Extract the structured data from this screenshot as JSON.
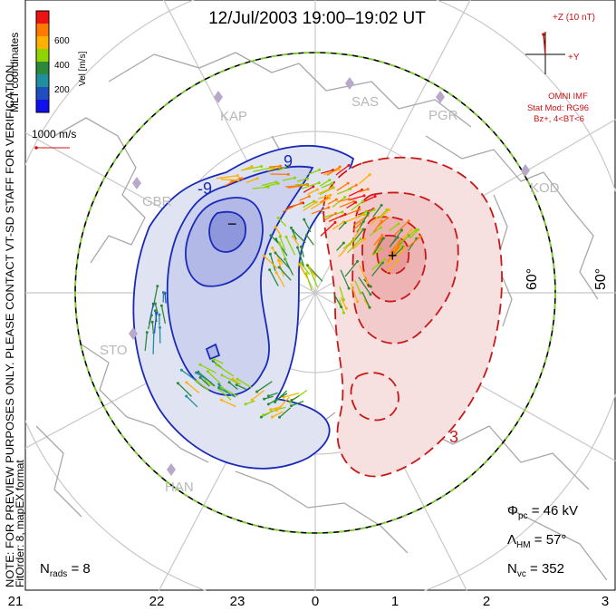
{
  "title": "12/Jul/2003 19:00–19:02 UT",
  "colorbar": {
    "label": "Vel [m/s]",
    "ticks": [
      "600",
      "400",
      "200"
    ],
    "colors": [
      "#ee1111",
      "#ff7a00",
      "#ffb000",
      "#8fd400",
      "#2a8a3a",
      "#1f8fa0",
      "#1f4fbf",
      "#1010ee"
    ]
  },
  "coord_label": "MLT coordinates",
  "reference_vector": "1000 m/s",
  "imf": {
    "z_label": "+Z (10 nT)",
    "y_label": "+Y",
    "source": "OMNI IMF",
    "stat_mod": "Stat Mod: RG96",
    "condition": "Bz+, 4<BT<6"
  },
  "stations": [
    "KAP",
    "SAS",
    "PGR",
    "KOD",
    "GBR",
    "STO",
    "HAN"
  ],
  "latitude_labels": [
    "60°",
    "50°"
  ],
  "contour_labels": [
    "-9",
    "9",
    "−",
    "+",
    "3"
  ],
  "side_note": {
    "line1": "NOTE: FOR PREVIEW PURPOSES ONLY. PLEASE CONTACT VT-SD STAFF FOR VERIFICATION.",
    "line2": "FitOrder: 8, mapEX format"
  },
  "stats": {
    "phi_pc": "Φpc = 46 kV",
    "lambda_hm": "ΛHM = 57°",
    "n_vc": "Nvc = 352",
    "n_rads": "Nrads = 8"
  },
  "stats_parts": {
    "phi_sym": "Φ",
    "phi_sub": "pc",
    "phi_val": " = 46 kV",
    "lam_sym": "Λ",
    "lam_sub": "HM",
    "lam_val": " = 57°",
    "nvc_sym": "N",
    "nvc_sub": "vc",
    "nvc_val": " = 352",
    "nr_sym": "N",
    "nr_sub": "rads",
    "nr_val": " = 8"
  },
  "mlt_ticks": [
    "21",
    "22",
    "23",
    "0",
    "1",
    "2",
    "3"
  ]
}
